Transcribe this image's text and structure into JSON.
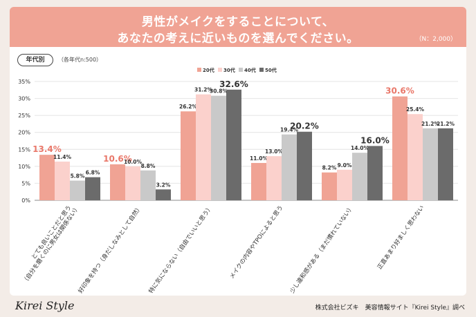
{
  "header": {
    "title_line1": "男性がメイクをすることについて、",
    "title_line2": "あなたの考えに近いものを選んでください。",
    "sample_note": "（N：2,000）"
  },
  "panel": {
    "tag": "年代別",
    "note": "（各年代n:500）"
  },
  "footer": {
    "logo": "Kirei Style",
    "credit": "株式会社ビズキ　美容情報サイト『Kirei Style』調べ"
  },
  "chart_data": {
    "type": "bar",
    "y_ticks": [
      "35%",
      "30%",
      "25%",
      "20%",
      "15%",
      "10%",
      "5%",
      "0%"
    ],
    "ylim": [
      0,
      35
    ],
    "legend_position": "top-center",
    "categories": [
      "とても良いことだと思う（自分を磨くのに男女は関係ない）",
      "好印象を持つ（身だしなみとして自然）",
      "特に気にならない（自由でいいと思う）",
      "メイクの内容やTPOによると思う",
      "少し違和感がある（まだ慣れていない）",
      "正直あまり好ましく思わない"
    ],
    "category_lines": [
      [
        "とても良いことだと思う",
        "（自分を磨くのに男女は関係ない）"
      ],
      [
        "好印象を持つ（身だしなみとして自然）"
      ],
      [
        "特に気にならない（自由でいいと思う）"
      ],
      [
        "メイクの内容やTPOによると思う"
      ],
      [
        "少し違和感がある（まだ慣れていない）"
      ],
      [
        "正直あまり好ましく思わない"
      ]
    ],
    "series": [
      {
        "name": "20代",
        "color": "#f0a394",
        "values": [
          13.4,
          10.6,
          26.2,
          11.0,
          8.2,
          30.6
        ],
        "labels": [
          "13.4%",
          "10.6%",
          "26.2%",
          "11.0%",
          "8.2%",
          "30.6%"
        ]
      },
      {
        "name": "30代",
        "color": "#fbd1cc",
        "values": [
          11.4,
          10.0,
          31.2,
          13.0,
          9.0,
          25.4
        ],
        "labels": [
          "11.4%",
          "10.0%",
          "31.2%",
          "13.0%",
          "9.0%",
          "25.4%"
        ]
      },
      {
        "name": "40代",
        "color": "#c9c9c9",
        "values": [
          5.8,
          8.8,
          30.8,
          19.4,
          14.0,
          21.2
        ],
        "labels": [
          "5.8%",
          "8.8%",
          "30.8%",
          "19.4%",
          "14.0%",
          "21.2%"
        ]
      },
      {
        "name": "50代",
        "color": "#6b6b6b",
        "values": [
          6.8,
          3.2,
          32.6,
          20.2,
          16.0,
          21.2
        ],
        "labels": [
          "6.8%",
          "3.2%",
          "32.6%",
          "20.2%",
          "16.0%",
          "21.2%"
        ]
      }
    ],
    "highlight_color": "#e9786a"
  }
}
